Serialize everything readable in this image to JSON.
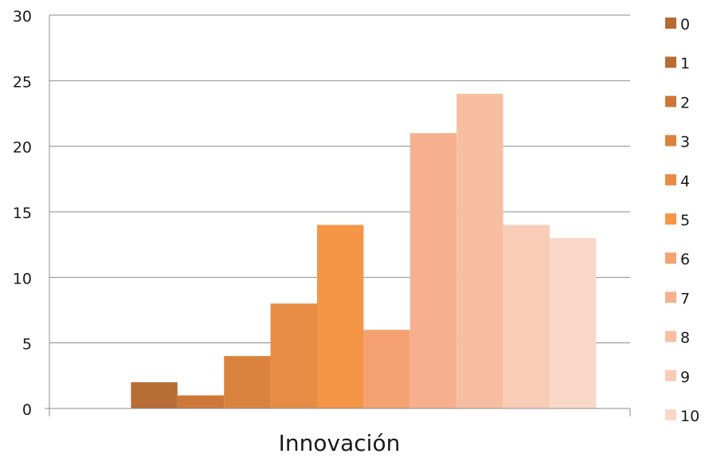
{
  "chart_data": {
    "type": "bar",
    "xlabel": "Innovación",
    "ylim": [
      0,
      30
    ],
    "yticks": [
      0,
      5,
      10,
      15,
      20,
      25,
      30
    ],
    "grid": true,
    "legend_position": "right",
    "series": [
      {
        "name": "0",
        "value": 0,
        "color": "#b76a32"
      },
      {
        "name": "1",
        "value": 2,
        "color": "#b86d35"
      },
      {
        "name": "2",
        "value": 1,
        "color": "#cd7838"
      },
      {
        "name": "3",
        "value": 4,
        "color": "#da833f"
      },
      {
        "name": "4",
        "value": 8,
        "color": "#e68c44"
      },
      {
        "name": "5",
        "value": 14,
        "color": "#f59546"
      },
      {
        "name": "6",
        "value": 6,
        "color": "#f4a272"
      },
      {
        "name": "7",
        "value": 21,
        "color": "#f6b08d"
      },
      {
        "name": "8",
        "value": 24,
        "color": "#f7bea2"
      },
      {
        "name": "9",
        "value": 14,
        "color": "#f9ccb7"
      },
      {
        "name": "10",
        "value": 13,
        "color": "#fad8c8"
      }
    ]
  }
}
